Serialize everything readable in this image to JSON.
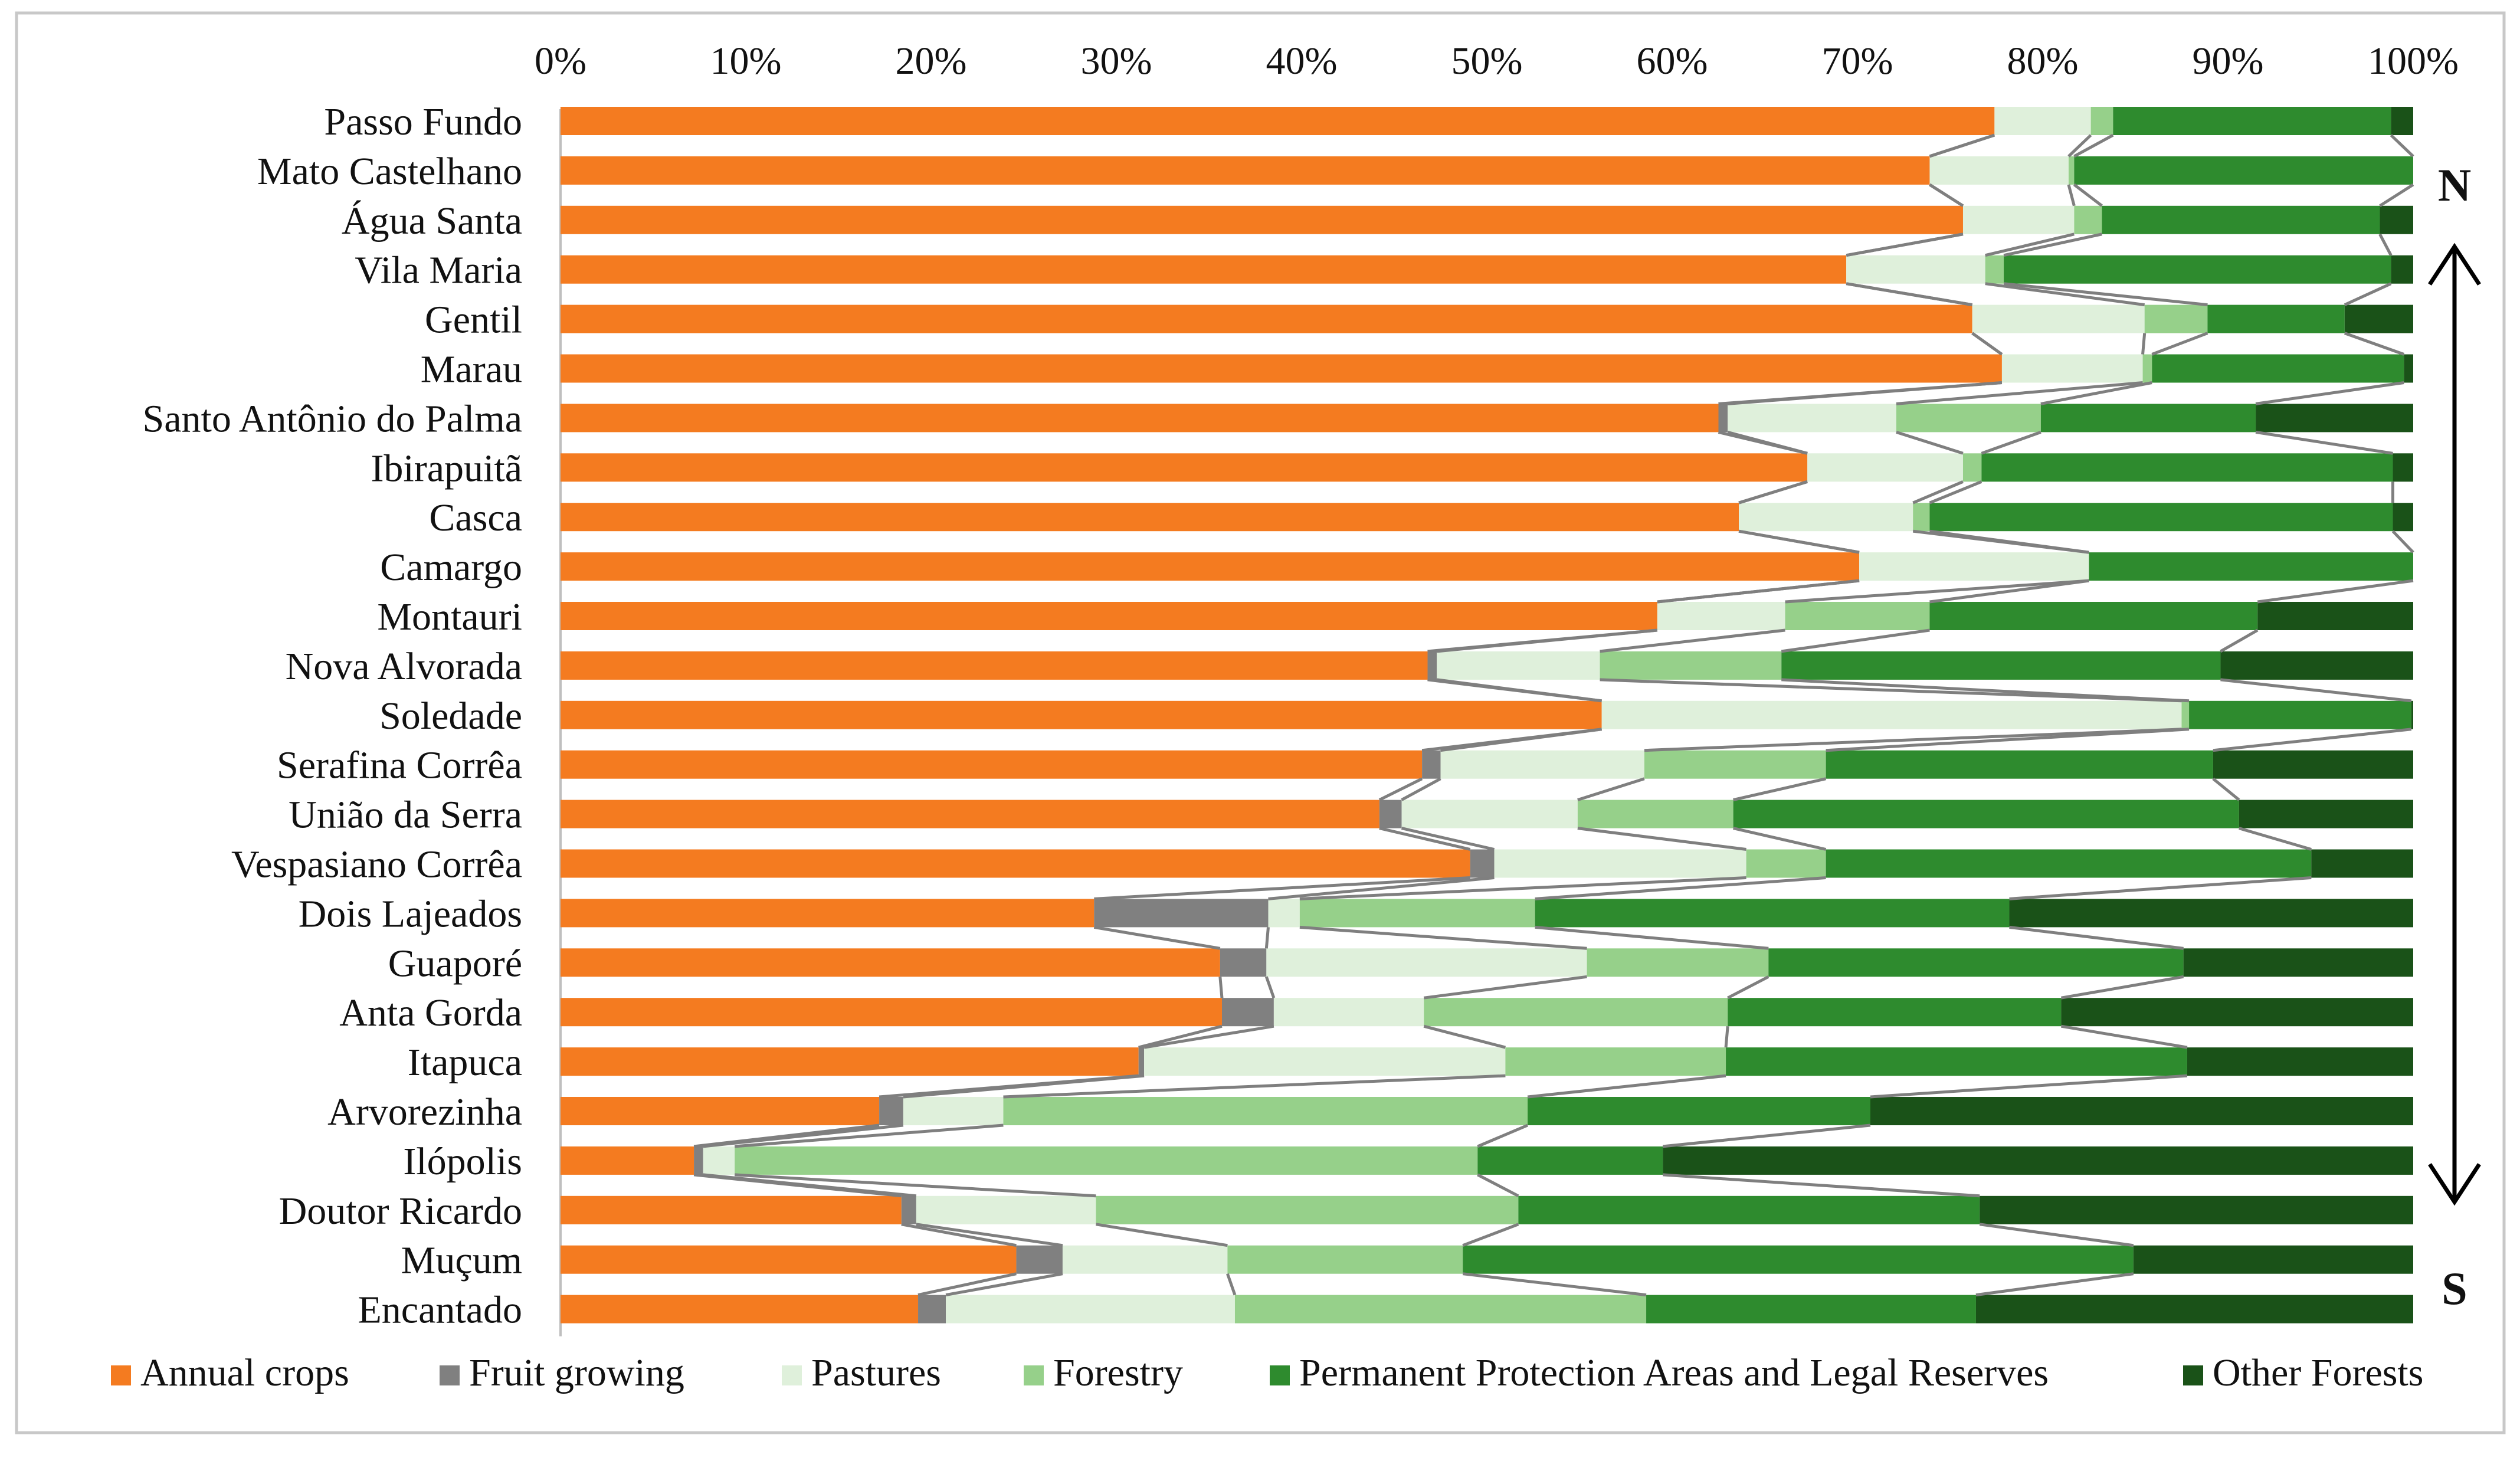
{
  "chart_data": {
    "type": "bar",
    "orientation": "horizontal",
    "stacked": true,
    "normalized": true,
    "title": "",
    "xlabel": "",
    "ylabel": "",
    "xlim": [
      0,
      100
    ],
    "x_ticks": [
      "0%",
      "10%",
      "20%",
      "30%",
      "40%",
      "50%",
      "60%",
      "70%",
      "80%",
      "90%",
      "100%"
    ],
    "grid": false,
    "legend_position": "bottom",
    "categories": [
      "Passo Fundo",
      "Mato Castelhano",
      "Água Santa",
      "Vila Maria",
      "Gentil",
      "Marau",
      "Santo Antônio do Palma",
      "Ibirapuitã",
      "Casca",
      "Camargo",
      "Montauri",
      "Nova Alvorada",
      "Soledade",
      "Serafina Corrêa",
      "União da Serra",
      "Vespasiano Corrêa",
      "Dois Lajeados",
      "Guaporé",
      "Anta Gorda",
      "Itapuca",
      "Arvorezinha",
      "Ilópolis",
      "Doutor Ricardo",
      "Muçum",
      "Encantado"
    ],
    "series": [
      {
        "name": "Annual crops",
        "color": "#F47B20",
        "values": [
          77.4,
          73.9,
          75.7,
          69.4,
          76.2,
          77.8,
          62.5,
          67.3,
          63.6,
          70.1,
          59.2,
          46.8,
          56.2,
          46.5,
          44.2,
          49.1,
          28.8,
          35.6,
          35.7,
          31.2,
          17.2,
          7.2,
          18.4,
          24.6,
          19.3
        ]
      },
      {
        "name": "Fruit growing",
        "color": "#808080",
        "values": [
          0.0,
          0.0,
          0.0,
          0.0,
          0.0,
          0.0,
          0.5,
          0.0,
          0.0,
          0.0,
          0.0,
          0.5,
          0.0,
          1.0,
          1.2,
          1.3,
          9.4,
          2.5,
          2.8,
          0.3,
          1.3,
          0.5,
          0.8,
          2.5,
          1.5
        ]
      },
      {
        "name": "Pastures",
        "color": "#DFF0DB",
        "values": [
          5.2,
          7.5,
          6.0,
          7.5,
          9.3,
          7.6,
          9.1,
          8.4,
          9.4,
          12.4,
          6.9,
          8.8,
          31.3,
          11.0,
          9.5,
          13.6,
          1.7,
          17.3,
          8.1,
          19.5,
          5.4,
          1.7,
          9.7,
          8.9,
          15.6
        ]
      },
      {
        "name": "Forestry",
        "color": "#96D08A",
        "values": [
          1.2,
          0.3,
          1.5,
          1.0,
          3.4,
          0.5,
          7.8,
          1.0,
          0.9,
          0.0,
          7.8,
          9.8,
          0.4,
          9.8,
          8.4,
          4.3,
          12.7,
          9.8,
          16.4,
          11.9,
          28.3,
          40.1,
          22.8,
          12.7,
          22.2
        ]
      },
      {
        "name": "Permanent Protection Areas and Legal Reserves",
        "color": "#2E8B2E",
        "values": [
          15.0,
          18.3,
          15.0,
          20.9,
          7.4,
          13.6,
          11.6,
          22.2,
          25.0,
          17.5,
          17.7,
          23.7,
          12.0,
          20.9,
          27.3,
          26.2,
          25.6,
          22.4,
          18.0,
          24.9,
          18.5,
          10.0,
          24.9,
          36.2,
          17.8
        ]
      },
      {
        "name": "Other Forests",
        "color": "#1A5218",
        "values": [
          1.2,
          0.0,
          1.8,
          1.2,
          3.7,
          0.5,
          8.5,
          1.1,
          1.1,
          0.0,
          8.4,
          10.4,
          0.1,
          10.8,
          9.4,
          5.5,
          21.8,
          12.4,
          19.0,
          12.2,
          29.3,
          40.5,
          23.4,
          15.1,
          23.6
        ]
      }
    ],
    "annotations": {
      "north": "N",
      "south": "S"
    }
  }
}
